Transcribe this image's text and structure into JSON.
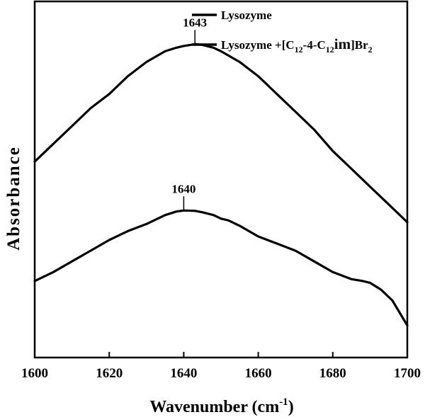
{
  "chart_data": {
    "type": "line",
    "xlabel": "Wavenumber (cm",
    "xlabel_sup": "-1",
    "xlabel_close": ")",
    "ylabel": "Absorbance",
    "xlim": [
      1600,
      1700
    ],
    "ylim": [
      0,
      1
    ],
    "x_ticks": [
      "1600",
      "1620",
      "1640",
      "1660",
      "1680",
      "1700"
    ],
    "y_ticks_shown": false,
    "grid": false,
    "legend_position": "top-right",
    "legend": [
      {
        "label": "Lysozyme"
      },
      {
        "label_parts": [
          "Lysozyme +[C",
          "12",
          "-4-C",
          "12",
          "im",
          "]Br",
          "2"
        ]
      }
    ],
    "series": [
      {
        "x": [
          1600,
          1605,
          1610,
          1615,
          1620,
          1625,
          1630,
          1635,
          1638,
          1640,
          1643,
          1645,
          1648,
          1650,
          1655,
          1660,
          1665,
          1670,
          1675,
          1680,
          1685,
          1690,
          1695,
          1700
        ],
        "y": [
          0.55,
          0.6,
          0.65,
          0.7,
          0.74,
          0.79,
          0.83,
          0.86,
          0.87,
          0.875,
          0.88,
          0.878,
          0.87,
          0.86,
          0.83,
          0.79,
          0.74,
          0.69,
          0.64,
          0.58,
          0.53,
          0.48,
          0.43,
          0.38
        ]
      },
      {
        "x": [
          1600,
          1605,
          1610,
          1615,
          1620,
          1625,
          1630,
          1635,
          1638,
          1640,
          1643,
          1645,
          1648,
          1650,
          1652,
          1655,
          1660,
          1665,
          1670,
          1675,
          1680,
          1685,
          1688,
          1690,
          1693,
          1696,
          1700
        ],
        "y": [
          0.215,
          0.24,
          0.27,
          0.3,
          0.33,
          0.355,
          0.375,
          0.4,
          0.41,
          0.413,
          0.412,
          0.408,
          0.4,
          0.39,
          0.385,
          0.37,
          0.34,
          0.32,
          0.3,
          0.27,
          0.24,
          0.22,
          0.215,
          0.21,
          0.19,
          0.16,
          0.09
        ]
      }
    ],
    "annotations": [
      {
        "text": "1643",
        "x": 1643,
        "y": 0.88
      },
      {
        "text": "1640",
        "x": 1640,
        "y": 0.413
      }
    ]
  }
}
